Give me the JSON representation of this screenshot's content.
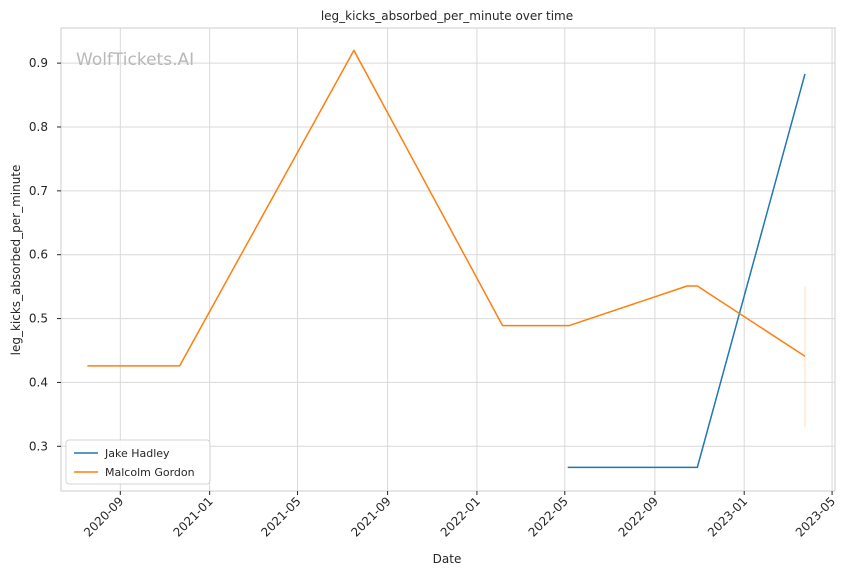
{
  "chart_data": {
    "type": "line",
    "title": "leg_kicks_absorbed_per_minute over time",
    "xlabel": "Date",
    "ylabel": "leg_kicks_absorbed_per_minute",
    "watermark": "WolfTickets.AI",
    "grid": true,
    "legend_position": "bottom-left",
    "xlim": [
      "2020-06-12",
      "2023-05-05"
    ],
    "ylim": [
      0.23,
      0.955
    ],
    "x_ticks": [
      "2020-09-01",
      "2021-01-01",
      "2021-05-01",
      "2021-09-01",
      "2022-01-01",
      "2022-05-01",
      "2022-09-01",
      "2023-01-01",
      "2023-05-01"
    ],
    "x_tick_labels": [
      "2020-09",
      "2021-01",
      "2021-05",
      "2021-09",
      "2022-01",
      "2022-05",
      "2022-09",
      "2023-01",
      "2023-05"
    ],
    "y_ticks": [
      0.3,
      0.4,
      0.5,
      0.6,
      0.7,
      0.8,
      0.9
    ],
    "y_tick_labels": [
      "0.3",
      "0.4",
      "0.5",
      "0.6",
      "0.7",
      "0.8",
      "0.9"
    ],
    "series": [
      {
        "name": "Jake Hadley",
        "color": "#1f77b4",
        "points": [
          {
            "x": "2022-05-05",
            "y": 0.267
          },
          {
            "x": "2022-10-29",
            "y": 0.267
          },
          {
            "x": "2023-03-25",
            "y": 0.883
          }
        ]
      },
      {
        "name": "Malcolm Gordon",
        "color": "#ff7f0e",
        "points": [
          {
            "x": "2020-07-18",
            "y": 0.426
          },
          {
            "x": "2020-11-21",
            "y": 0.426
          },
          {
            "x": "2021-07-17",
            "y": 0.92
          },
          {
            "x": "2022-02-05",
            "y": 0.489
          },
          {
            "x": "2022-05-07",
            "y": 0.489
          },
          {
            "x": "2022-10-15",
            "y": 0.551
          },
          {
            "x": "2022-10-29",
            "y": 0.551
          },
          {
            "x": "2023-03-25",
            "y": 0.441
          }
        ]
      }
    ],
    "error_band": {
      "x": "2023-03-25",
      "y_low": 0.33,
      "y_high": 0.55,
      "color": "#ff7f0e"
    }
  }
}
